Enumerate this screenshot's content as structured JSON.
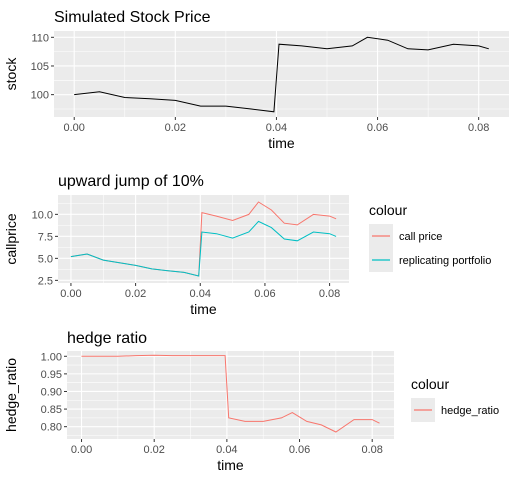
{
  "chart_data": [
    {
      "type": "line",
      "title": "Simulated Stock Price",
      "xlabel": "time",
      "ylabel": "stock",
      "xlim": [
        -0.004,
        0.086
      ],
      "ylim": [
        96.1,
        111.1
      ],
      "x_ticks": [
        0.0,
        0.02,
        0.04,
        0.06,
        0.08
      ],
      "x_tick_labels": [
        "0.00",
        "0.02",
        "0.04",
        "0.06",
        "0.08"
      ],
      "y_ticks": [
        100,
        105,
        110
      ],
      "y_tick_labels": [
        "100",
        "105",
        "110"
      ],
      "grid": true,
      "legend": null,
      "series": [
        {
          "color": "#000000",
          "x": [
            0.0,
            0.005,
            0.01,
            0.015,
            0.02,
            0.025,
            0.03,
            0.035,
            0.0395,
            0.0405,
            0.045,
            0.05,
            0.055,
            0.058,
            0.062,
            0.066,
            0.07,
            0.075,
            0.08,
            0.082
          ],
          "y": [
            100.0,
            100.5,
            99.5,
            99.3,
            99.0,
            98.0,
            98.0,
            97.5,
            97.0,
            108.8,
            108.5,
            108.0,
            108.5,
            110.0,
            109.5,
            108.0,
            107.8,
            108.8,
            108.5,
            108.0
          ]
        }
      ]
    },
    {
      "type": "line",
      "title": "upward jump of 10%",
      "xlabel": "time",
      "ylabel": "callprice",
      "xlim": [
        -0.004,
        0.086
      ],
      "ylim": [
        2.2,
        12.2
      ],
      "x_ticks": [
        0.0,
        0.02,
        0.04,
        0.06,
        0.08
      ],
      "x_tick_labels": [
        "0.00",
        "0.02",
        "0.04",
        "0.06",
        "0.08"
      ],
      "y_ticks": [
        2.5,
        5.0,
        7.5,
        10.0
      ],
      "y_tick_labels": [
        "2.5",
        "5.0",
        "7.5",
        "10.0"
      ],
      "grid": true,
      "legend": {
        "title": "colour",
        "position": "right",
        "items": [
          {
            "label": "call price",
            "color": "#F8766D"
          },
          {
            "label": "replicating portfolio",
            "color": "#00BFC4"
          }
        ]
      },
      "series": [
        {
          "name": "call price",
          "color": "#F8766D",
          "x": [
            0.0,
            0.005,
            0.01,
            0.015,
            0.02,
            0.025,
            0.03,
            0.035,
            0.0395,
            0.0405,
            0.045,
            0.05,
            0.055,
            0.058,
            0.062,
            0.066,
            0.07,
            0.075,
            0.08,
            0.082
          ],
          "y": [
            5.2,
            5.5,
            4.8,
            4.5,
            4.2,
            3.8,
            3.6,
            3.4,
            3.0,
            10.2,
            9.8,
            9.3,
            10.0,
            11.4,
            10.5,
            9.0,
            8.8,
            10.0,
            9.8,
            9.5
          ]
        },
        {
          "name": "replicating portfolio",
          "color": "#00BFC4",
          "x": [
            0.0,
            0.005,
            0.01,
            0.015,
            0.02,
            0.025,
            0.03,
            0.035,
            0.0395,
            0.0405,
            0.045,
            0.05,
            0.055,
            0.058,
            0.062,
            0.066,
            0.07,
            0.075,
            0.08,
            0.082
          ],
          "y": [
            5.2,
            5.5,
            4.8,
            4.5,
            4.2,
            3.8,
            3.6,
            3.4,
            3.0,
            8.0,
            7.8,
            7.3,
            8.0,
            9.2,
            8.5,
            7.2,
            7.0,
            8.0,
            7.8,
            7.5
          ]
        }
      ]
    },
    {
      "type": "line",
      "title": "hedge ratio",
      "xlabel": "time",
      "ylabel": "hedge_ratio",
      "xlim": [
        -0.004,
        0.086
      ],
      "ylim": [
        0.765,
        1.015
      ],
      "x_ticks": [
        0.0,
        0.02,
        0.04,
        0.06,
        0.08
      ],
      "x_tick_labels": [
        "0.00",
        "0.02",
        "0.04",
        "0.06",
        "0.08"
      ],
      "y_ticks": [
        0.8,
        0.85,
        0.9,
        0.95,
        1.0
      ],
      "y_tick_labels": [
        "0.80",
        "0.85",
        "0.90",
        "0.95",
        "1.00"
      ],
      "grid": true,
      "legend": {
        "title": "colour",
        "position": "right",
        "items": [
          {
            "label": "hedge_ratio",
            "color": "#F8766D"
          }
        ]
      },
      "series": [
        {
          "name": "hedge_ratio",
          "color": "#F8766D",
          "x": [
            0.0,
            0.005,
            0.01,
            0.015,
            0.02,
            0.025,
            0.03,
            0.035,
            0.0395,
            0.0405,
            0.045,
            0.05,
            0.055,
            0.058,
            0.062,
            0.066,
            0.07,
            0.075,
            0.08,
            0.082
          ],
          "y": [
            1.0,
            1.0,
            1.0,
            1.002,
            1.003,
            1.002,
            1.002,
            1.002,
            1.002,
            0.825,
            0.815,
            0.815,
            0.825,
            0.84,
            0.815,
            0.805,
            0.785,
            0.82,
            0.82,
            0.81
          ]
        }
      ]
    }
  ]
}
